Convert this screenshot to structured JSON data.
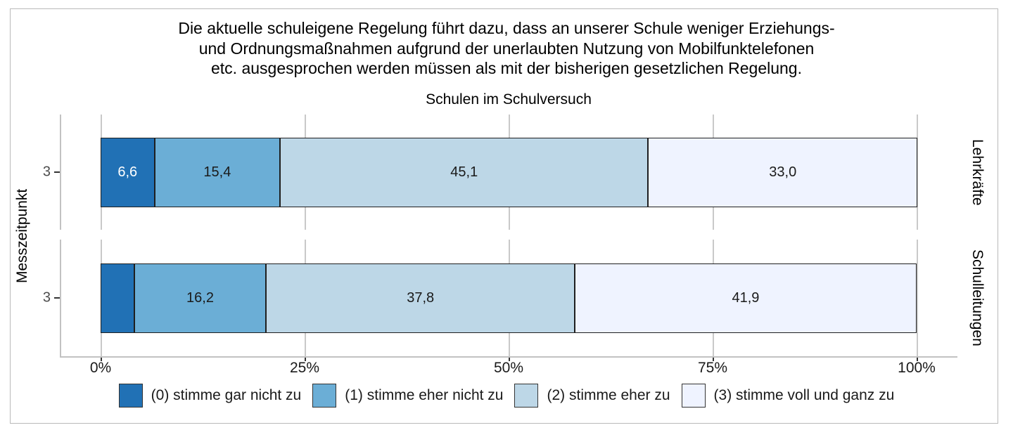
{
  "header": {
    "title_lines": [
      "Die aktuelle schuleigene Regelung führt dazu, dass an unserer Schule weniger Erziehungs-",
      "und Ordnungsmaßnahmen aufgrund der unerlaubten Nutzung von Mobilfunktelefonen",
      "etc. ausgesprochen werden müssen als mit der bisherigen gesetzlichen Regelung."
    ],
    "subtitle": "Schulen im Schulversuch"
  },
  "chart_data": {
    "type": "bar",
    "stacked": true,
    "orientation": "horizontal",
    "unit": "percent",
    "title": "Die aktuelle schuleigene Regelung führt dazu, dass an unserer Schule weniger Erziehungs- und Ordnungsmaßnahmen aufgrund der unerlaubten Nutzung von Mobilfunktelefonen etc. ausgesprochen werden müssen als mit der bisherigen gesetzlichen Regelung.",
    "subtitle": "Schulen im Schulversuch",
    "ylabel": "Messzeitpunkt",
    "xlabel": "",
    "xlim": [
      0,
      100
    ],
    "x_tick_labels": [
      "0%",
      "25%",
      "50%",
      "75%",
      "100%"
    ],
    "x_tick_values": [
      0,
      25,
      50,
      75,
      100
    ],
    "grid": "vertical-only",
    "legend_position": "bottom",
    "facets": [
      {
        "strip_label": "Lehrkräfte",
        "y_tick_label": "3"
      },
      {
        "strip_label": "Schulleitungen",
        "y_tick_label": "3"
      }
    ],
    "series": [
      {
        "name": "(0) stimme gar nicht zu",
        "color": "#2171B5",
        "label_color": "#ffffff",
        "values": [
          6.6,
          4.1
        ],
        "labels": [
          "6,6",
          ""
        ]
      },
      {
        "name": "(1) stimme eher nicht zu",
        "color": "#6BAED6",
        "label_color": "#1a1a1a",
        "values": [
          15.4,
          16.2
        ],
        "labels": [
          "15,4",
          "16,2"
        ]
      },
      {
        "name": "(2) stimme eher zu",
        "color": "#BDD7E7",
        "label_color": "#1a1a1a",
        "values": [
          45.1,
          37.8
        ],
        "labels": [
          "45,1",
          "37,8"
        ]
      },
      {
        "name": "(3) stimme voll und ganz zu",
        "color": "#EFF3FF",
        "label_color": "#1a1a1a",
        "values": [
          33.0,
          41.9
        ],
        "labels": [
          "33,0",
          "41,9"
        ]
      }
    ]
  }
}
